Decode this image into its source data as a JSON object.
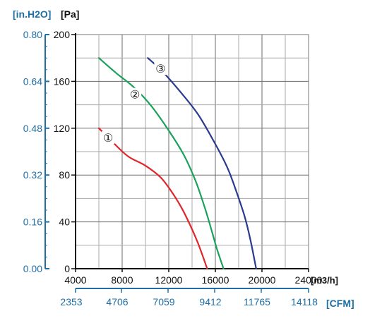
{
  "chart_data": {
    "type": "line",
    "units": {
      "left_inh2o": "[in.H2O]",
      "pa": "[Pa]",
      "flow_m3h": "[m3/h]",
      "cfm": "[CFM]"
    },
    "pa_axis": {
      "ticks": [
        0,
        40,
        80,
        120,
        160,
        200
      ],
      "range": [
        0,
        200
      ]
    },
    "inh2o_axis": {
      "ticks": [
        "0.00",
        "0.16",
        "0.32",
        "0.48",
        "0.64",
        "0.80"
      ],
      "range": [
        0,
        0.8
      ]
    },
    "flow_axis": {
      "ticks": [
        4000,
        8000,
        12000,
        16000,
        20000,
        24000
      ],
      "range": [
        4000,
        24000
      ]
    },
    "cfm_axis": {
      "ticks": [
        "2353",
        "4706",
        "7059",
        "9412",
        "11765",
        "14118"
      ]
    },
    "grid": true,
    "series": [
      {
        "name": "①",
        "color": "#e0262b",
        "points": [
          [
            6000,
            120
          ],
          [
            7200,
            108
          ],
          [
            8500,
            96
          ],
          [
            10000,
            88
          ],
          [
            11300,
            78
          ],
          [
            12300,
            65
          ],
          [
            13100,
            52
          ],
          [
            13800,
            38
          ],
          [
            14500,
            22
          ],
          [
            15300,
            0
          ]
        ]
      },
      {
        "name": "②",
        "color": "#1aa25c",
        "points": [
          [
            6000,
            180
          ],
          [
            7500,
            167
          ],
          [
            9000,
            155
          ],
          [
            10500,
            139
          ],
          [
            12000,
            118
          ],
          [
            13300,
            97
          ],
          [
            14300,
            75
          ],
          [
            15100,
            52
          ],
          [
            15700,
            32
          ],
          [
            16100,
            18
          ],
          [
            16700,
            0
          ]
        ]
      },
      {
        "name": "③",
        "color": "#2a3b8f",
        "points": [
          [
            10200,
            180
          ],
          [
            11500,
            168
          ],
          [
            13000,
            151
          ],
          [
            14500,
            132
          ],
          [
            15800,
            110
          ],
          [
            17000,
            87
          ],
          [
            17800,
            66
          ],
          [
            18500,
            45
          ],
          [
            19000,
            25
          ],
          [
            19500,
            0
          ]
        ]
      }
    ],
    "markers": [
      {
        "label": "①",
        "x": 6800,
        "y": 112
      },
      {
        "label": "②",
        "x": 9100,
        "y": 149
      },
      {
        "label": "③",
        "x": 11300,
        "y": 171
      }
    ]
  }
}
